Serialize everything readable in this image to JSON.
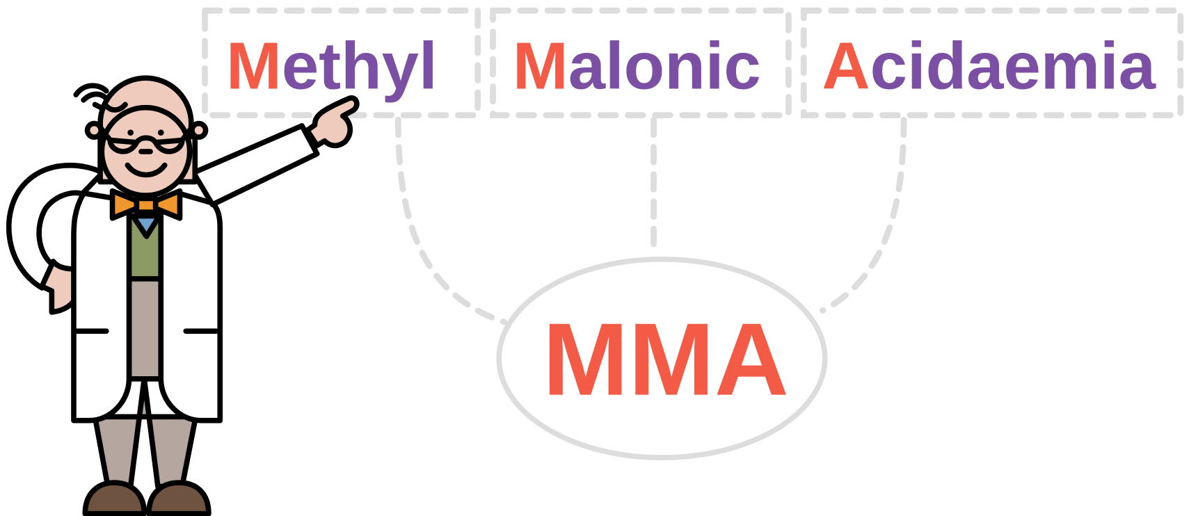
{
  "words": [
    {
      "initial": "M",
      "rest": "ethyl"
    },
    {
      "initial": "M",
      "rest": "alonic"
    },
    {
      "initial": "A",
      "rest": "cidaemia"
    }
  ],
  "acronym": "MMA"
}
